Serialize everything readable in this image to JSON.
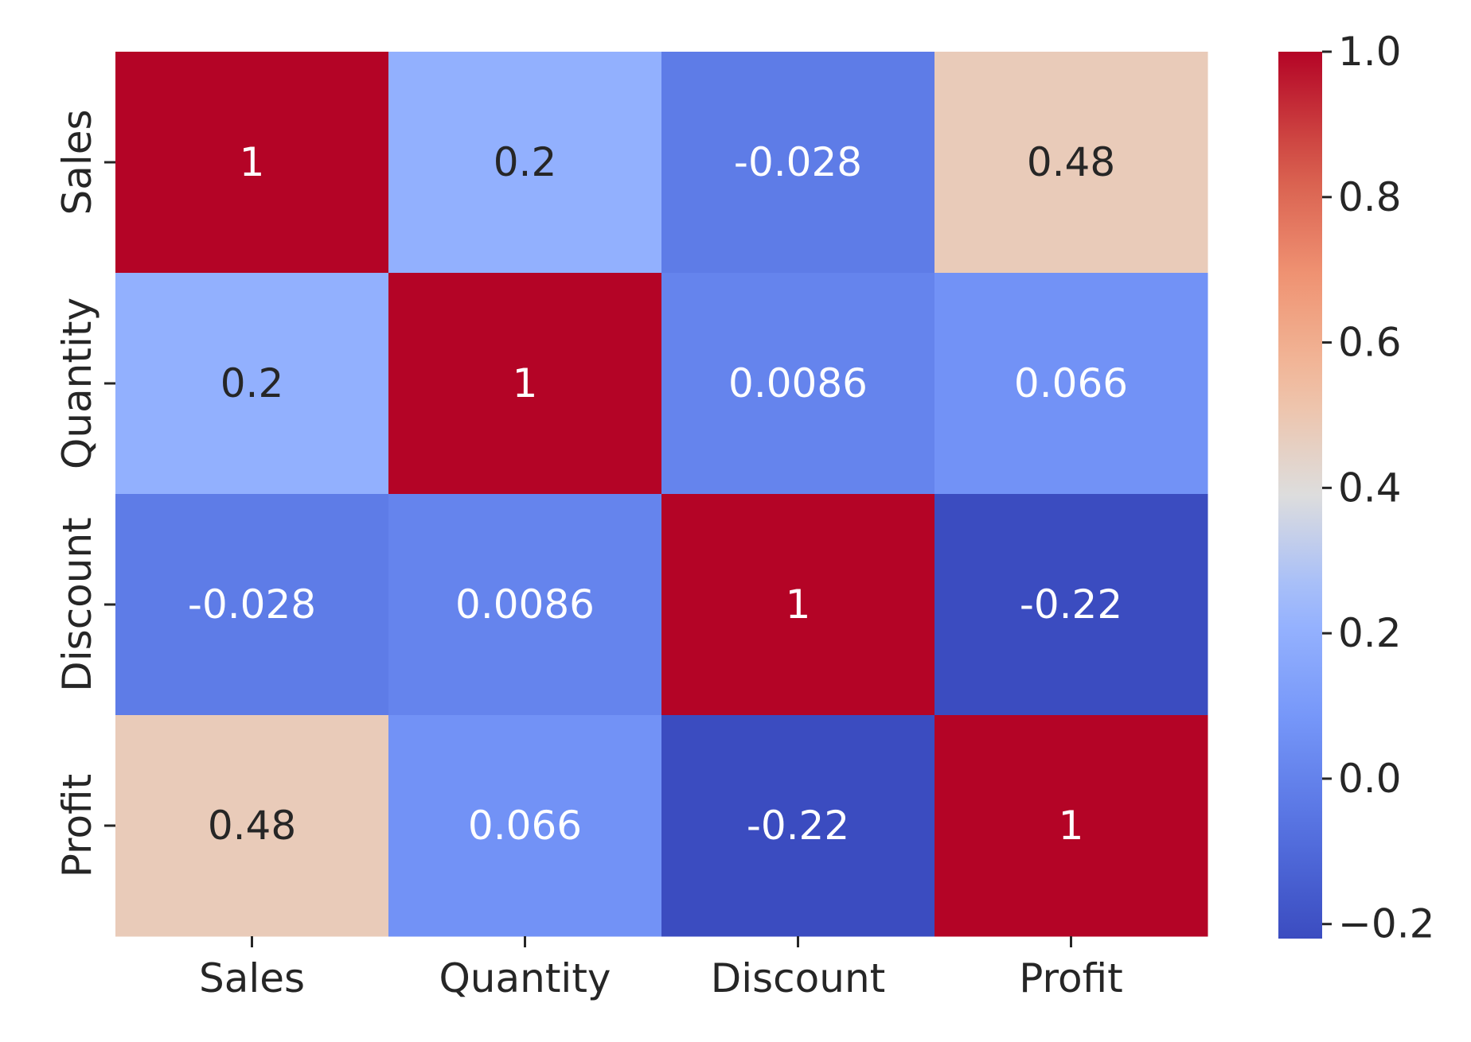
{
  "chart_data": {
    "type": "heatmap",
    "title": "",
    "xlabel": "",
    "ylabel": "",
    "x_categories": [
      "Sales",
      "Quantity",
      "Discount",
      "Profit"
    ],
    "y_categories": [
      "Sales",
      "Quantity",
      "Discount",
      "Profit"
    ],
    "values": [
      [
        1,
        0.2,
        -0.028,
        0.48
      ],
      [
        0.2,
        1,
        0.0086,
        0.066
      ],
      [
        -0.028,
        0.0086,
        1,
        -0.22
      ],
      [
        0.48,
        0.066,
        -0.22,
        1
      ]
    ],
    "annotations": [
      [
        "1",
        "0.2",
        "-0.028",
        "0.48"
      ],
      [
        "0.2",
        "1",
        "0.0086",
        "0.066"
      ],
      [
        "-0.028",
        "0.0086",
        "1",
        "-0.22"
      ],
      [
        "0.48",
        "0.066",
        "-0.22",
        "1"
      ]
    ],
    "colormap": "coolwarm",
    "vmin": -0.22,
    "vmax": 1.0,
    "colorbar_ticks": [
      1.0,
      0.8,
      0.6,
      0.4,
      0.2,
      0.0,
      -0.2
    ],
    "colorbar_tick_labels": [
      "1.0",
      "0.8",
      "0.6",
      "0.4",
      "0.2",
      "0.0",
      "−0.2"
    ],
    "colors": {
      "low": "#3b4cc0",
      "mid": "#dddddd",
      "high": "#b40426",
      "text_dark": "#262626",
      "text_light": "#ffffff"
    }
  }
}
